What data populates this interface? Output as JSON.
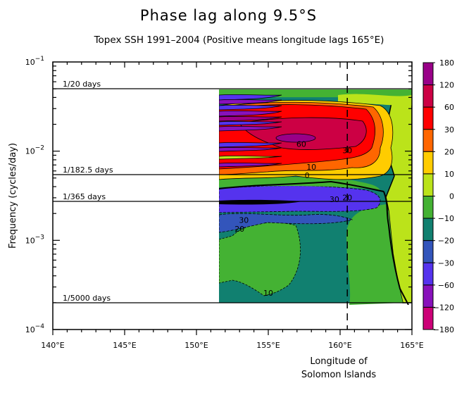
{
  "chart_data": {
    "type": "heatmap",
    "title": "Phase lag along 9.5°S",
    "subtitle": "Topex SSH 1991–2004 (Positive means longitude lags 165°E)",
    "xlabel_lines": [
      "Longitude of",
      "Solomon Islands"
    ],
    "ylabel": "Frequency (cycles/day)",
    "xlim": [
      140,
      165
    ],
    "ylim": [
      0.0001,
      0.1
    ],
    "yscale": "log",
    "x_ticks": [
      {
        "value": 140,
        "label": "140°E"
      },
      {
        "value": 145,
        "label": "145°E"
      },
      {
        "value": 150,
        "label": "150°E"
      },
      {
        "value": 155,
        "label": "155°E"
      },
      {
        "value": 160,
        "label": "160°E"
      },
      {
        "value": 165,
        "label": "165°E"
      }
    ],
    "y_ticks": [
      {
        "value": 0.1,
        "base": "10",
        "exp": "−1"
      },
      {
        "value": 0.01,
        "base": "10",
        "exp": "−2"
      },
      {
        "value": 0.001,
        "base": "10",
        "exp": "−3"
      },
      {
        "value": 0.0001,
        "base": "10",
        "exp": "−4"
      }
    ],
    "reference_lines": [
      {
        "freq": 0.05,
        "label": "1/20 days"
      },
      {
        "freq": 0.005479,
        "label": "1/182.5 days"
      },
      {
        "freq": 0.00274,
        "label": "1/365 days"
      },
      {
        "freq": 0.0002,
        "label": "1/5000 days"
      }
    ],
    "solomon_islands_longitude": 160.5,
    "data_extent": {
      "lon_min": 151.5,
      "lon_max": 165,
      "freq_min": 0.0002,
      "freq_max": 0.05
    },
    "colorbar": {
      "levels": [
        "180",
        "120",
        "60",
        "30",
        "20",
        "10",
        "0",
        "−10",
        "−20",
        "−30",
        "−60",
        "−120",
        "−180"
      ],
      "colors": [
        "#990088",
        "#cc0044",
        "#ff0000",
        "#ff6600",
        "#ffcc00",
        "#bbe31a",
        "#44b233",
        "#118070",
        "#3355bb",
        "#5533ee",
        "#8811bb",
        "#cc0077"
      ]
    },
    "contour_labels": [
      {
        "text": "60",
        "lon": 157.3,
        "freq": 0.0112
      },
      {
        "text": "30",
        "lon": 160.5,
        "freq": 0.0095
      },
      {
        "text": "10",
        "lon": 158.0,
        "freq": 0.0062
      },
      {
        "text": "0",
        "lon": 157.7,
        "freq": 0.005
      },
      {
        "text": "30",
        "lon": 159.6,
        "freq": 0.00268
      },
      {
        "text": "20",
        "lon": 160.5,
        "freq": 0.0028
      },
      {
        "text": "30",
        "lon": 153.3,
        "freq": 0.00157
      },
      {
        "text": "20",
        "lon": 153.0,
        "freq": 0.00125
      },
      {
        "text": "10",
        "lon": 155.0,
        "freq": 0.00024
      }
    ],
    "regions": [
      {
        "name": "high-freq mixed band",
        "lon": [
          151.5,
          158
        ],
        "freq": [
          0.011,
          0.05
        ],
        "dominant_phase": "-60 to -120"
      },
      {
        "name": "red/crimson phase band",
        "lon": [
          151.5,
          163
        ],
        "freq": [
          0.006,
          0.03
        ],
        "dominant_phase": "30 to 120"
      },
      {
        "name": "annual blue band",
        "lon": [
          151.5,
          160.5
        ],
        "freq": [
          0.0022,
          0.0036
        ],
        "dominant_phase": "-30"
      },
      {
        "name": "low-freq teal/green",
        "lon": [
          151.5,
          163
        ],
        "freq": [
          0.0002,
          0.0022
        ],
        "dominant_phase": "-10 to -20"
      },
      {
        "name": "eastern yellow-green edge",
        "lon": [
          163,
          165
        ],
        "freq": [
          0.0002,
          0.04
        ],
        "dominant_phase": "0 to 10"
      }
    ]
  }
}
